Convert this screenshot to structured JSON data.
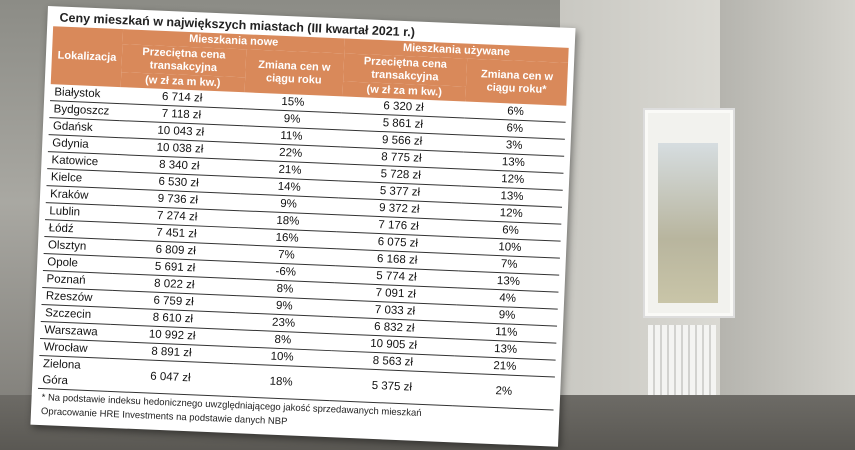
{
  "table": {
    "title": "Ceny mieszkań w największych miastach (III kwartał 2021 r.)",
    "header": {
      "location": "Lokalizacja",
      "new_group": "Mieszkania nowe",
      "new_price": "Przeciętna cena transakcyjna",
      "new_unit": "(w zł za m kw.)",
      "new_change": "Zmiana cen w ciągu roku",
      "used_group": "Mieszkania używane",
      "used_price": "Przeciętna cena transakcyjna",
      "used_unit": "(w zł za m kw.)",
      "used_change": "Zmiana cen w ciągu roku*"
    },
    "rows": [
      [
        "Białystok",
        "6 714 zł",
        "15%",
        "6 320 zł",
        "6%"
      ],
      [
        "Bydgoszcz",
        "7 118 zł",
        "9%",
        "5 861 zł",
        "6%"
      ],
      [
        "Gdańsk",
        "10 043 zł",
        "11%",
        "9 566 zł",
        "3%"
      ],
      [
        "Gdynia",
        "10 038 zł",
        "22%",
        "8 775 zł",
        "13%"
      ],
      [
        "Katowice",
        "8 340 zł",
        "21%",
        "5 728 zł",
        "12%"
      ],
      [
        "Kielce",
        "6 530 zł",
        "14%",
        "5 377 zł",
        "13%"
      ],
      [
        "Kraków",
        "9 736 zł",
        "9%",
        "9 372 zł",
        "12%"
      ],
      [
        "Lublin",
        "7 274 zł",
        "18%",
        "7 176 zł",
        "6%"
      ],
      [
        "Łódź",
        "7 451 zł",
        "16%",
        "6 075 zł",
        "10%"
      ],
      [
        "Olsztyn",
        "6 809 zł",
        "7%",
        "6 168 zł",
        "7%"
      ],
      [
        "Opole",
        "5 691 zł",
        "-6%",
        "5 774 zł",
        "13%"
      ],
      [
        "Poznań",
        "8 022 zł",
        "8%",
        "7 091 zł",
        "4%"
      ],
      [
        "Rzeszów",
        "6 759 zł",
        "9%",
        "7 033 zł",
        "9%"
      ],
      [
        "Szczecin",
        "8 610 zł",
        "23%",
        "6 832 zł",
        "11%"
      ],
      [
        "Warszawa",
        "10 992 zł",
        "8%",
        "10 905 zł",
        "13%"
      ],
      [
        "Wrocław",
        "8 891 zł",
        "10%",
        "8 563 zł",
        "21%"
      ],
      [
        "Zielona Góra",
        "6 047 zł",
        "18%",
        "5 375 zł",
        "2%"
      ]
    ]
  },
  "footnotes": [
    "* Na podstawie indeksu hedonicznego uwzględniającego jakość sprzedawanych mieszkań",
    "Opracowanie HRE Investments na podstawie danych NBP"
  ]
}
